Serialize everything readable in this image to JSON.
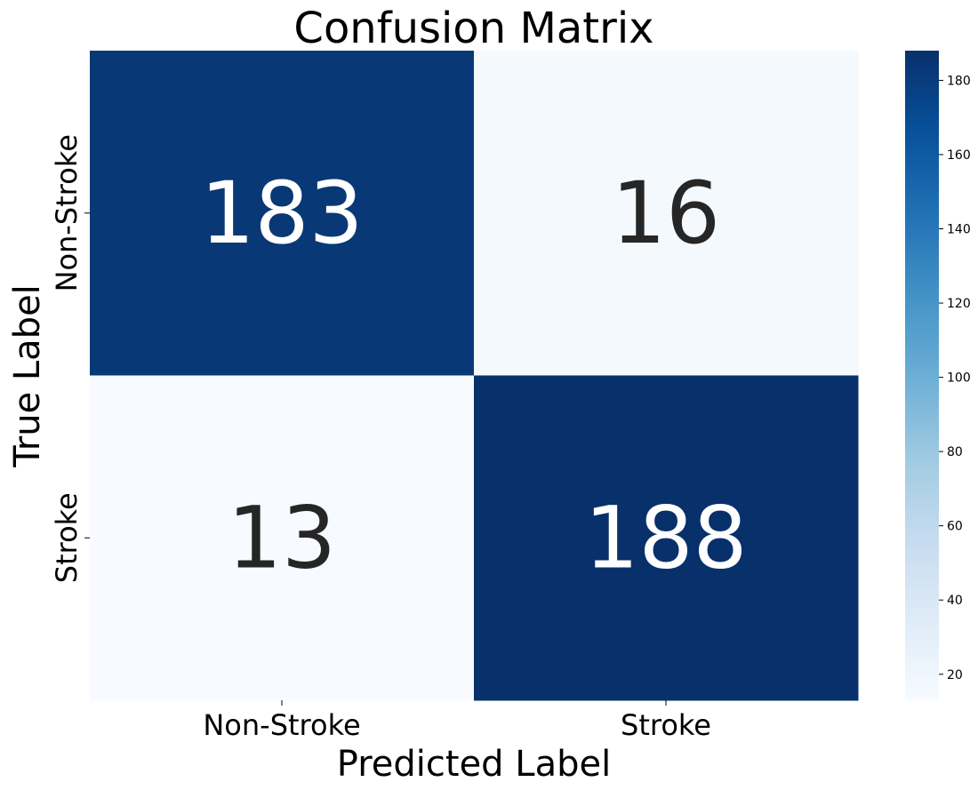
{
  "chart_data": {
    "type": "heatmap",
    "title": "Confusion Matrix",
    "xlabel": "Predicted Label",
    "ylabel": "True Label",
    "x_categories": [
      "Non-Stroke",
      "Stroke"
    ],
    "y_categories": [
      "Non-Stroke",
      "Stroke"
    ],
    "values": [
      [
        183,
        16
      ],
      [
        13,
        188
      ]
    ],
    "colormap": "Blues",
    "color_range": [
      13,
      188
    ],
    "colorbar_ticks": [
      20,
      40,
      60,
      80,
      100,
      120,
      140,
      160,
      180
    ],
    "cell_text_colors": {
      "dark_cell": "#ffffff",
      "light_cell": "#262626"
    }
  }
}
